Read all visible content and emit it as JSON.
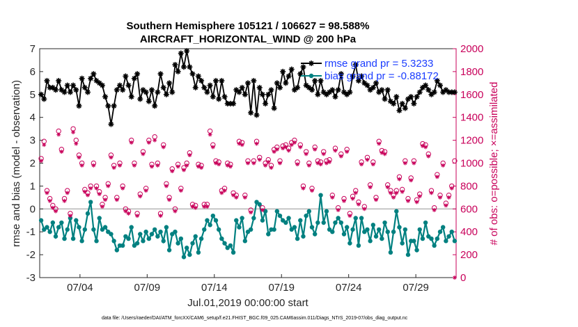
{
  "chart_data": {
    "type": "line",
    "title_line1": "Southern Hemisphere 105121 / 106627 = 98.588%",
    "title_line2": "AIRCRAFT_HORIZONTAL_WIND @ 200 hPa",
    "xlabel": "Jul.01,2019 00:00:00 start",
    "ylabel_left": "rmse and bias (model - observation)",
    "ylabel_right": "# of obs: o=possible; ×=assimilated",
    "ylim_left": [
      -3,
      7
    ],
    "ylim_right": [
      0,
      2000
    ],
    "xlim": [
      1.0,
      32.0
    ],
    "left_ticks": [
      "-3",
      "-2",
      "-1",
      "0",
      "1",
      "2",
      "3",
      "4",
      "5",
      "6",
      "7"
    ],
    "right_ticks": [
      "0",
      "200",
      "400",
      "600",
      "800",
      "1000",
      "1200",
      "1400",
      "1600",
      "1800",
      "2000"
    ],
    "x_ticks": [
      {
        "label": "07/04",
        "value": 4
      },
      {
        "label": "07/09",
        "value": 9
      },
      {
        "label": "07/14",
        "value": 14
      },
      {
        "label": "07/19",
        "value": 19
      },
      {
        "label": "07/24",
        "value": 24
      },
      {
        "label": "07/29",
        "value": 29
      }
    ],
    "zero_line": 0,
    "legend": [
      {
        "name": "rmse grand pr = 5.3233",
        "color": "#000000"
      },
      {
        "name": "bias grand pr = -0.88172",
        "color": "#008080"
      }
    ],
    "series": [
      {
        "name": "rmse",
        "axis": "left",
        "color": "#000000",
        "marker": "asterisk",
        "values": [
          5.0,
          4.8,
          5.6,
          5.3,
          5.3,
          5.2,
          5.6,
          5.2,
          5.1,
          5.4,
          5.1,
          5.4,
          5.2,
          4.5,
          5.7,
          5.3,
          5.1,
          5.7,
          5.9,
          5.6,
          5.5,
          5.4,
          4.9,
          4.5,
          3.7,
          4.5,
          5.2,
          5.4,
          5.2,
          5.8,
          5.4,
          4.9,
          5.7,
          5.9,
          4.8,
          5.2,
          5.1,
          4.7,
          5.2,
          4.5,
          5.1,
          5.9,
          5.3,
          5.0,
          5.5,
          5.1,
          6.3,
          6.0,
          6.8,
          6.2,
          6.9,
          6.2,
          5.9,
          5.3,
          5.8,
          5.6,
          5.3,
          5.1,
          5.4,
          4.9,
          5.6,
          4.8,
          5.6,
          4.9,
          4.6,
          4.6,
          4.6,
          5.2,
          5.1,
          5.3,
          5.0,
          5.5,
          4.2,
          5.6,
          4.1,
          5.3,
          5.0,
          4.6,
          5.0,
          5.2,
          4.4,
          5.5,
          5.3,
          6.0,
          5.5,
          5.8,
          6.1,
          5.2,
          5.3,
          5.9,
          6.2,
          5.4,
          5.3,
          5.2,
          5.6,
          5.0,
          5.6,
          5.1,
          5.0,
          5.1,
          5.2,
          4.9,
          5.2,
          5.9,
          5.1,
          5.0,
          5.1,
          5.8,
          6.3,
          5.6,
          5.8,
          5.5,
          5.4,
          5.2,
          5.3,
          5.5,
          5.1,
          5.2,
          4.8,
          5.2,
          4.7,
          4.6,
          4.9,
          4.3,
          4.6,
          4.4,
          4.8,
          4.9,
          4.6,
          4.9,
          5.1,
          5.3,
          5.4,
          5.2,
          5.0,
          5.1,
          5.6,
          5.4,
          5.1,
          5.2,
          5.1,
          5.1,
          5.1
        ]
      },
      {
        "name": "bias",
        "axis": "left",
        "color": "#008080",
        "marker": "dot",
        "values": [
          -0.5,
          -0.9,
          -0.8,
          -1.0,
          -0.6,
          -1.2,
          -0.8,
          -0.6,
          -1.3,
          -0.9,
          -0.4,
          -1.3,
          -0.5,
          -0.8,
          -1.4,
          -0.9,
          -0.2,
          0.3,
          -0.9,
          -1.4,
          -0.4,
          -0.9,
          -0.8,
          -1.0,
          -1.1,
          -1.4,
          -1.8,
          -1.6,
          -1.6,
          -1.2,
          -1.3,
          -0.8,
          -1.6,
          -1.5,
          -1.1,
          -1.4,
          -1.0,
          -1.3,
          -1.1,
          -0.9,
          -1.2,
          -1.0,
          -1.4,
          -0.8,
          -1.8,
          -1.1,
          -1.0,
          -1.5,
          -1.3,
          -2.1,
          -1.7,
          -2.0,
          -1.5,
          -1.2,
          -1.9,
          -1.3,
          -0.9,
          -0.5,
          -0.7,
          -0.3,
          -0.5,
          -0.9,
          -1.3,
          -1.5,
          -1.7,
          -1.6,
          -1.9,
          -0.5,
          -0.8,
          -0.4,
          -1.4,
          -1.0,
          -0.9,
          -0.4,
          0.3,
          0.2,
          -0.5,
          -0.1,
          -1.1,
          -0.9,
          -0.9,
          -0.1,
          -0.3,
          -0.5,
          -0.6,
          -0.4,
          -0.9,
          -0.8,
          -1.3,
          -0.5,
          -1.2,
          -0.3,
          -0.1,
          -0.8,
          -1.1,
          -0.6,
          0.6,
          -0.6,
          -0.1,
          -0.9,
          -1.0,
          -0.6,
          -0.4,
          -0.6,
          -1.1,
          -0.8,
          -1.5,
          -0.9,
          -0.4,
          -1.6,
          -0.4,
          -1.0,
          -0.9,
          -1.4,
          -0.7,
          -1.2,
          -0.9,
          -1.3,
          -0.6,
          -1.0,
          -1.9,
          -1.0,
          -0.1,
          -0.8,
          -1.5,
          -0.9,
          -2.0,
          -1.4,
          -1.4,
          -1.8,
          -0.9,
          -1.3,
          -0.6,
          -1.2,
          -1.3,
          -1.6,
          -1.3,
          -1.0,
          -0.8,
          -1.4,
          -1.2,
          -1.0,
          -1.4
        ]
      },
      {
        "name": "possible",
        "axis": "right",
        "color": "#c8005a",
        "marker": "circle",
        "values": [
          1040,
          1190,
          760,
          690,
          630,
          600,
          1280,
          1120,
          690,
          760,
          560,
          1300,
          1200,
          1070,
          1000,
          770,
          740,
          800,
          1000,
          800,
          750,
          640,
          700,
          820,
          1070,
          980,
          700,
          1000,
          800,
          600,
          580,
          1200,
          1000,
          560,
          730,
          1100,
          780,
          1200,
          990,
          1230,
          1000,
          560,
          1160,
          820,
          700,
          950,
          600,
          990,
          780,
          960,
          1000,
          1090,
          640,
          630,
          990,
          980,
          640,
          640,
          1280,
          1160,
          1020,
          1010,
          760,
          780,
          1000,
          990,
          740,
          720,
          1190,
          1180,
          720,
          1020,
          590,
          1020,
          1190,
          1050,
          610,
          1000,
          1030,
          980,
          1120,
          1140,
          1020,
          1150,
          1160,
          1130,
          1180,
          1200,
          1010,
          1160,
          800,
          1100,
          1000,
          780,
          1140,
          1020,
          1010,
          1100,
          1020,
          1030,
          720,
          1130,
          610,
          1080,
          690,
          1120,
          560,
          710,
          760,
          660,
          1010,
          620,
          1050,
          810,
          1010,
          700,
          1190,
          1110,
          1100,
          810,
          760,
          720,
          760,
          880,
          770,
          1020,
          690,
          870,
          1020,
          680,
          730,
          1170,
          1160,
          1080,
          760,
          610,
          900,
          720,
          1000,
          650,
          720,
          800,
          1020
        ]
      },
      {
        "name": "assimilated",
        "axis": "right",
        "color": "#c8005a",
        "marker": "asterisk",
        "values": [
          1020,
          1160,
          740,
          670,
          610,
          580,
          1250,
          1100,
          670,
          740,
          540,
          1270,
          1170,
          1050,
          980,
          750,
          720,
          780,
          980,
          780,
          730,
          620,
          680,
          800,
          1050,
          960,
          680,
          980,
          780,
          580,
          560,
          1180,
          980,
          540,
          710,
          1080,
          760,
          1180,
          970,
          1200,
          980,
          540,
          1140,
          800,
          680,
          930,
          580,
          970,
          760,
          940,
          980,
          1070,
          620,
          610,
          970,
          960,
          620,
          620,
          1250,
          1140,
          1000,
          990,
          740,
          760,
          980,
          970,
          720,
          700,
          1170,
          1160,
          700,
          1000,
          570,
          1000,
          1170,
          1030,
          590,
          980,
          1010,
          960,
          1100,
          1120,
          1000,
          1130,
          1140,
          1110,
          1160,
          1180,
          990,
          1140,
          780,
          1080,
          980,
          760,
          1120,
          1000,
          990,
          1080,
          1000,
          1010,
          700,
          1110,
          590,
          1060,
          670,
          1100,
          540,
          690,
          740,
          640,
          990,
          600,
          1030,
          790,
          990,
          680,
          1170,
          1090,
          1080,
          790,
          740,
          700,
          740,
          860,
          750,
          1000,
          670,
          850,
          1000,
          660,
          710,
          1150,
          1140,
          1060,
          740,
          590,
          880,
          700,
          980,
          630,
          700,
          780,
          0
        ]
      }
    ]
  },
  "footer": "data file: /Users/raeder/DAI/ATM_forcXX/CAM6_setup/f.e21.FHIST_BGC.f09_025.CAM6assim.011/Diags_NTrS_2019-07/obs_diag_output.nc"
}
